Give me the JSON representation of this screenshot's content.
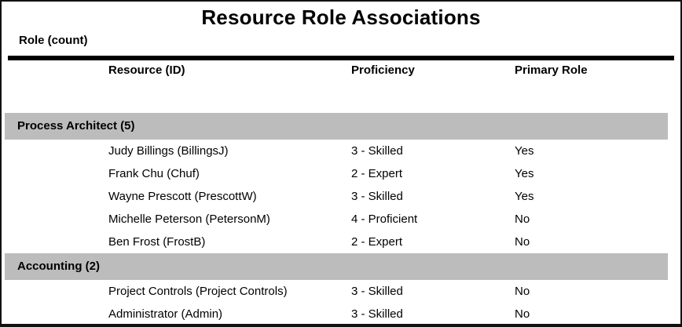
{
  "report": {
    "title": "Resource Role Associations",
    "group_by_label": "Role (count)",
    "columns": {
      "resource": "Resource (ID)",
      "proficiency": "Proficiency",
      "primary_role": "Primary Role"
    },
    "groups": [
      {
        "name": "Process Architect (5)",
        "rows": [
          {
            "resource": "Judy Billings (BillingsJ)",
            "proficiency": "3 - Skilled",
            "primary_role": "Yes"
          },
          {
            "resource": "Frank Chu (Chuf)",
            "proficiency": "2 - Expert",
            "primary_role": "Yes"
          },
          {
            "resource": "Wayne Prescott (PrescottW)",
            "proficiency": "3 - Skilled",
            "primary_role": "Yes"
          },
          {
            "resource": "Michelle Peterson (PetersonM)",
            "proficiency": "4 - Proficient",
            "primary_role": "No"
          },
          {
            "resource": "Ben Frost (FrostB)",
            "proficiency": "2 - Expert",
            "primary_role": "No"
          }
        ]
      },
      {
        "name": "Accounting (2)",
        "rows": [
          {
            "resource": "Project Controls (Project Controls)",
            "proficiency": "3 - Skilled",
            "primary_role": "No"
          },
          {
            "resource": "Administrator (Admin)",
            "proficiency": "3 - Skilled",
            "primary_role": "No"
          }
        ]
      }
    ],
    "colors": {
      "band_background": "#bcbcbc",
      "rule": "#000000",
      "text": "#000000",
      "page_background": "#ffffff",
      "frame_border": "#111111"
    }
  }
}
